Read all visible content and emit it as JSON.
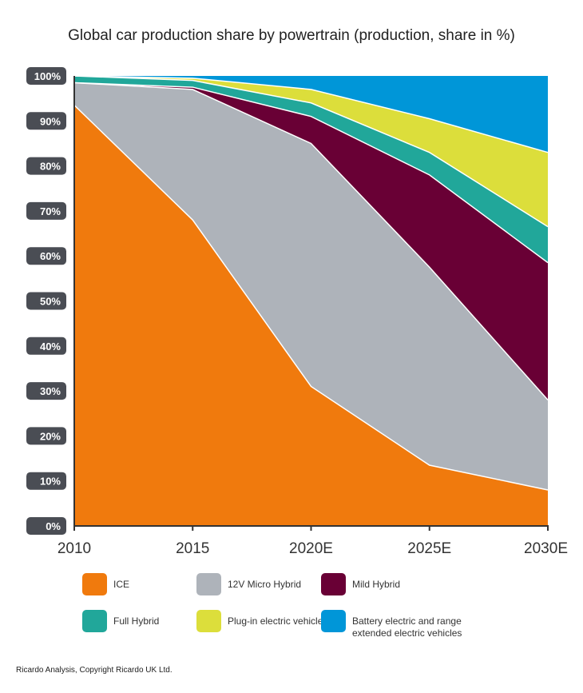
{
  "chart_data": {
    "type": "area",
    "stacked": true,
    "title": "Global car production share by powertrain (production, share in %)",
    "xlabel": "",
    "ylabel": "",
    "categories": [
      "2010",
      "2015",
      "2020E",
      "2025E",
      "2030E"
    ],
    "ylim": [
      0,
      100
    ],
    "yticks": [
      "0%",
      "10%",
      "20%",
      "30%",
      "40%",
      "50%",
      "60%",
      "70%",
      "80%",
      "90%",
      "100%"
    ],
    "grid": false,
    "legend_position": "bottom",
    "series": [
      {
        "name": "ICE",
        "color": "#f07a0d",
        "values": [
          93.5,
          68,
          31,
          13.5,
          8
        ]
      },
      {
        "name": "12V Micro Hybrid",
        "color": "#aeb3ba",
        "values": [
          5,
          29,
          54,
          44,
          20
        ]
      },
      {
        "name": "Mild Hybrid",
        "color": "#690035",
        "values": [
          0,
          0.5,
          6,
          20.5,
          30.5
        ]
      },
      {
        "name": "Full Hybrid",
        "color": "#21a79a",
        "values": [
          1.5,
          1.5,
          3,
          5,
          8
        ]
      },
      {
        "name": "Plug-in electric vehicles",
        "color": "#dcde3b",
        "values": [
          0,
          0.5,
          3,
          7.5,
          16.5
        ]
      },
      {
        "name": "Battery electric and range extended electric vehicles",
        "color": "#0096d8",
        "values": [
          0,
          0.5,
          3,
          9.5,
          17
        ]
      }
    ]
  },
  "legend": [
    {
      "label": "ICE",
      "color": "#f07a0d"
    },
    {
      "label": "12V Micro Hybrid",
      "color": "#aeb3ba"
    },
    {
      "label": "Mild Hybrid",
      "color": "#690035"
    },
    {
      "label": "Full Hybrid",
      "color": "#21a79a"
    },
    {
      "label": "Plug-in electric vehicles",
      "color": "#dcde3b"
    },
    {
      "label": "Battery electric and range extended electric vehicles",
      "color": "#0096d8"
    }
  ],
  "source": "Ricardo Analysis, Copyright Ricardo UK Ltd."
}
